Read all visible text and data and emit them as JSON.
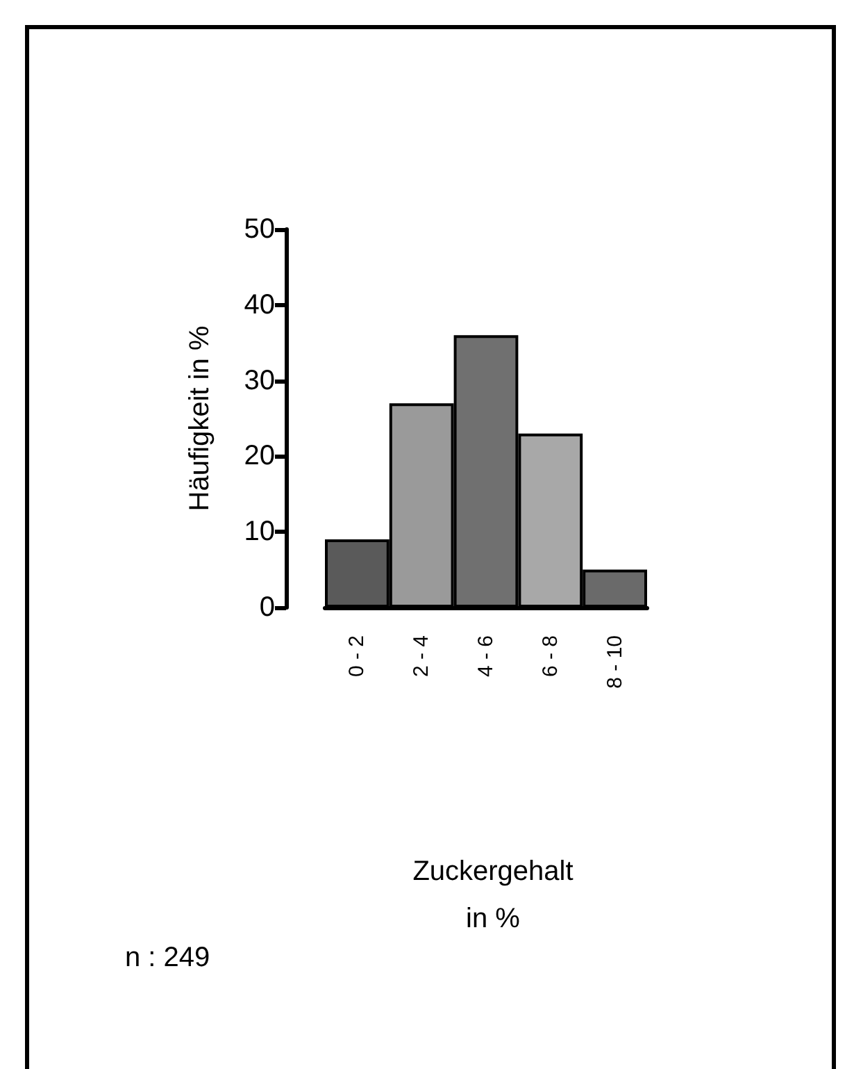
{
  "chart_data": {
    "type": "bar",
    "ylabel": "Häufigkeit in %",
    "categories": [
      "0 - 2",
      "2 - 4",
      "4 - 6",
      "6 - 8",
      "8 - 10"
    ],
    "values": [
      9,
      27,
      36,
      23,
      5
    ],
    "colors": [
      "#5a5a5a",
      "#9a9a9a",
      "#707070",
      "#a8a8a8",
      "#6a6a6a"
    ],
    "ylim": [
      0,
      50
    ],
    "yticks": [
      0,
      10,
      20,
      30,
      40,
      50
    ],
    "grid": false,
    "annotations": [
      "Zuckergehalt\nin %",
      "n : 249"
    ]
  }
}
